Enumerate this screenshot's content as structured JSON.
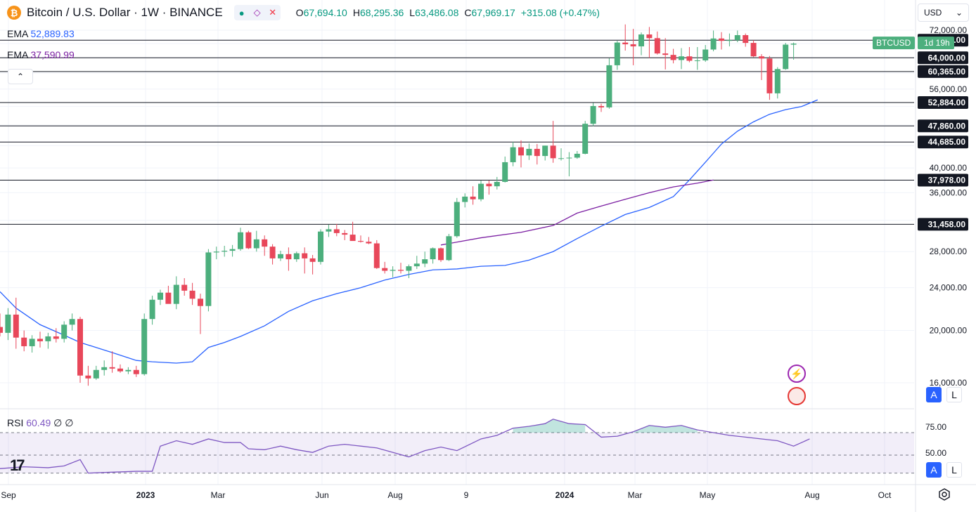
{
  "header": {
    "title": "Bitcoin / U.S. Dollar · 1W · BINANCE",
    "ohlc": [
      {
        "k": "O",
        "v": "67,694.10"
      },
      {
        "k": "H",
        "v": "68,295.36"
      },
      {
        "k": "L",
        "v": "63,486.08"
      },
      {
        "k": "C",
        "v": "67,969.17"
      },
      {
        "k": "",
        "v": "+315.08 (+0.47%)"
      }
    ]
  },
  "indicators": {
    "ema1": {
      "label": "EMA",
      "value": "52,889.83",
      "color": "#2962ff"
    },
    "ema2": {
      "label": "EMA",
      "value": "37,590.99",
      "color": "#7b1fa2"
    },
    "rsi": {
      "label": "RSI",
      "value": "60.49",
      "extra1": "∅",
      "extra2": "∅"
    }
  },
  "currency": "USD",
  "symbol_tag": {
    "symbol": "BTCUSD",
    "countdown": "1d 19h"
  },
  "colors": {
    "up": "#089981",
    "up_body": "#4caf7d",
    "down": "#f23645",
    "down_body": "#e8475a",
    "ema_fast": "#2962ff",
    "ema_slow": "#7b1fa2"
  },
  "chart_data": {
    "type": "candlestick",
    "y_ticks": [
      "72,000.00",
      "56,000.00",
      "40,000.00",
      "36,000.00",
      "28,000.00",
      "24,000.00",
      "20,000.00",
      "16,000.00"
    ],
    "levels": [
      "69,000.00",
      "64,000.00",
      "60,365.00",
      "52,884.00",
      "47,860.00",
      "44,685.00",
      "37,978.00",
      "31,458.00"
    ],
    "x_labels": [
      "Sep",
      "2023",
      "Mar",
      "Jun",
      "Aug",
      "9",
      "2024",
      "Mar",
      "May",
      "Aug",
      "Oct"
    ],
    "ema_fast_points": [
      [
        0,
        23600
      ],
      [
        2,
        22000
      ],
      [
        5,
        20500
      ],
      [
        8,
        19600
      ],
      [
        10,
        19000
      ],
      [
        14,
        18200
      ],
      [
        17,
        17600
      ],
      [
        19,
        17500
      ],
      [
        22,
        17400
      ],
      [
        24,
        17500
      ],
      [
        26,
        18600
      ],
      [
        28,
        19000
      ],
      [
        30,
        19500
      ],
      [
        33,
        20400
      ],
      [
        36,
        21700
      ],
      [
        39,
        22700
      ],
      [
        42,
        23400
      ],
      [
        45,
        24000
      ],
      [
        48,
        24800
      ],
      [
        51,
        25400
      ],
      [
        54,
        25900
      ],
      [
        57,
        26000
      ],
      [
        60,
        26300
      ],
      [
        63,
        26400
      ],
      [
        66,
        27000
      ],
      [
        69,
        28000
      ],
      [
        72,
        29600
      ],
      [
        75,
        31200
      ],
      [
        78,
        32800
      ],
      [
        81,
        33800
      ],
      [
        84,
        35400
      ],
      [
        86,
        38000
      ],
      [
        88,
        41000
      ],
      [
        90,
        44300
      ],
      [
        92,
        46800
      ],
      [
        94,
        48700
      ],
      [
        96,
        50300
      ],
      [
        98,
        51300
      ],
      [
        100,
        52000
      ],
      [
        102,
        53500
      ]
    ],
    "ema_slow_points": [
      [
        55,
        28800
      ],
      [
        60,
        29700
      ],
      [
        65,
        30400
      ],
      [
        69,
        31300
      ],
      [
        72,
        33000
      ],
      [
        75,
        34000
      ],
      [
        78,
        35000
      ],
      [
        81,
        36000
      ],
      [
        84,
        36900
      ],
      [
        87,
        37500
      ],
      [
        89,
        38000
      ]
    ],
    "candles": [
      [
        0,
        20300,
        21500,
        19500,
        19800
      ],
      [
        1,
        19800,
        22000,
        19200,
        21400
      ],
      [
        2,
        21400,
        23000,
        18500,
        19400
      ],
      [
        3,
        19400,
        20000,
        18300,
        18700
      ],
      [
        4,
        18700,
        19600,
        18200,
        19300
      ],
      [
        5,
        19300,
        19900,
        18600,
        19100
      ],
      [
        6,
        19100,
        19800,
        18500,
        19500
      ],
      [
        7,
        19500,
        20200,
        19000,
        19300
      ],
      [
        8,
        19300,
        20800,
        19000,
        20500
      ],
      [
        9,
        20500,
        21500,
        20000,
        21000
      ],
      [
        10,
        21000,
        21200,
        16000,
        16500
      ],
      [
        11,
        16500,
        17200,
        15800,
        16300
      ],
      [
        12,
        16300,
        17200,
        16200,
        16900
      ],
      [
        13,
        16900,
        17600,
        16500,
        17100
      ],
      [
        14,
        17100,
        18300,
        16700,
        17000
      ],
      [
        15,
        17000,
        17300,
        16700,
        16800
      ],
      [
        16,
        16800,
        17100,
        16600,
        16900
      ],
      [
        17,
        16900,
        17200,
        16400,
        16600
      ],
      [
        18,
        16600,
        21500,
        16500,
        21000
      ],
      [
        19,
        21000,
        23200,
        20500,
        22800
      ],
      [
        20,
        22800,
        23800,
        22300,
        23500
      ],
      [
        21,
        23500,
        24200,
        22700,
        22400
      ],
      [
        22,
        22400,
        25200,
        21900,
        24300
      ],
      [
        23,
        24300,
        25000,
        23200,
        23700
      ],
      [
        24,
        23700,
        24500,
        22300,
        22900
      ],
      [
        25,
        22900,
        23400,
        19700,
        22200
      ],
      [
        26,
        22200,
        28300,
        21700,
        27900
      ],
      [
        27,
        27900,
        28600,
        27100,
        28000
      ],
      [
        28,
        28000,
        28700,
        27400,
        28100
      ],
      [
        29,
        28100,
        28800,
        27400,
        28300
      ],
      [
        30,
        28300,
        31000,
        28100,
        30400
      ],
      [
        31,
        30400,
        30600,
        28300,
        28400
      ],
      [
        32,
        28400,
        30600,
        28000,
        29500
      ],
      [
        33,
        29500,
        30000,
        27500,
        28600
      ],
      [
        34,
        28600,
        28900,
        26500,
        27200
      ],
      [
        35,
        27200,
        28100,
        26900,
        27700
      ],
      [
        36,
        27700,
        28500,
        25800,
        27100
      ],
      [
        37,
        27100,
        28000,
        26800,
        27800
      ],
      [
        38,
        27800,
        28500,
        25500,
        27200
      ],
      [
        39,
        27200,
        27600,
        25400,
        26800
      ],
      [
        40,
        26800,
        30800,
        26500,
        30500
      ],
      [
        41,
        30500,
        31400,
        29800,
        30800
      ],
      [
        42,
        30800,
        31500,
        29900,
        30300
      ],
      [
        43,
        30300,
        30700,
        29400,
        30100
      ],
      [
        44,
        30100,
        31800,
        29800,
        29300
      ],
      [
        45,
        29300,
        30000,
        29100,
        29200
      ],
      [
        46,
        29200,
        29800,
        28900,
        29000
      ],
      [
        47,
        29000,
        29400,
        26000,
        26100
      ],
      [
        48,
        26100,
        26800,
        25500,
        25800
      ],
      [
        49,
        25800,
        26300,
        25100,
        25900
      ],
      [
        50,
        25900,
        26700,
        25500,
        25800
      ],
      [
        51,
        25800,
        26500,
        25000,
        26300
      ],
      [
        52,
        26300,
        27500,
        26000,
        26600
      ],
      [
        53,
        26600,
        28000,
        26200,
        27100
      ],
      [
        54,
        27100,
        28500,
        26600,
        28400
      ],
      [
        55,
        28400,
        28500,
        26800,
        27000
      ],
      [
        56,
        27000,
        30200,
        26900,
        29900
      ],
      [
        57,
        29900,
        35200,
        29700,
        34600
      ],
      [
        58,
        34600,
        35900,
        33800,
        35400
      ],
      [
        59,
        35400,
        37000,
        34200,
        35000
      ],
      [
        60,
        35000,
        37900,
        34700,
        37400
      ],
      [
        61,
        37400,
        37900,
        35700,
        37000
      ],
      [
        62,
        37000,
        38500,
        36500,
        37700
      ],
      [
        63,
        37700,
        42000,
        37600,
        41000
      ],
      [
        64,
        41000,
        44700,
        40300,
        43700
      ],
      [
        65,
        43700,
        45000,
        40100,
        42200
      ],
      [
        66,
        42200,
        44400,
        41400,
        43400
      ],
      [
        67,
        43400,
        44300,
        40600,
        42100
      ],
      [
        68,
        42100,
        44000,
        41300,
        44000
      ],
      [
        69,
        44000,
        48900,
        40900,
        41700
      ],
      [
        70,
        41700,
        43500,
        41300,
        41700
      ],
      [
        71,
        41700,
        42800,
        38600,
        41800
      ],
      [
        72,
        41800,
        43000,
        41600,
        42500
      ],
      [
        73,
        42500,
        48900,
        42400,
        48300
      ],
      [
        74,
        48300,
        52800,
        47800,
        52100
      ],
      [
        75,
        52100,
        52600,
        50800,
        51800
      ],
      [
        76,
        51800,
        63900,
        51500,
        62000
      ],
      [
        77,
        62000,
        68800,
        60800,
        68300
      ],
      [
        78,
        68300,
        73800,
        66000,
        67800
      ],
      [
        79,
        67800,
        72400,
        62000,
        67200
      ],
      [
        80,
        67200,
        71300,
        64700,
        70700
      ],
      [
        81,
        70700,
        73000,
        64000,
        69600
      ],
      [
        82,
        69600,
        71600,
        64900,
        65200
      ],
      [
        83,
        65200,
        69600,
        60900,
        64800
      ],
      [
        84,
        64800,
        66500,
        62500,
        63400
      ],
      [
        85,
        63400,
        66700,
        61000,
        64400
      ],
      [
        86,
        64400,
        67000,
        62800,
        63200
      ],
      [
        87,
        63200,
        67000,
        60800,
        63300
      ],
      [
        88,
        63300,
        67600,
        62900,
        66300
      ],
      [
        89,
        66300,
        71900,
        65800,
        69500
      ],
      [
        90,
        69500,
        71400,
        66300,
        68800
      ],
      [
        91,
        68800,
        71000,
        67200,
        69000
      ],
      [
        92,
        69000,
        71900,
        68400,
        70500
      ],
      [
        93,
        70500,
        71000,
        67100,
        68200
      ],
      [
        94,
        68200,
        69000,
        64200,
        64400
      ],
      [
        95,
        64400,
        65000,
        58200,
        63800
      ],
      [
        96,
        63800,
        64500,
        53500,
        55000
      ],
      [
        97,
        55000,
        61500,
        53800,
        61000
      ],
      [
        98,
        61000,
        68200,
        60800,
        67700
      ],
      [
        99,
        67700,
        68300,
        63500,
        68000
      ]
    ],
    "rsi": {
      "value": "60.49",
      "y_ticks": [
        "75.00",
        "50.00"
      ],
      "points": [
        [
          0,
          35
        ],
        [
          3,
          37
        ],
        [
          6,
          36
        ],
        [
          8,
          38
        ],
        [
          10,
          45
        ],
        [
          11,
          30
        ],
        [
          14,
          31
        ],
        [
          17,
          32
        ],
        [
          19,
          32
        ],
        [
          20,
          60
        ],
        [
          22,
          66
        ],
        [
          24,
          62
        ],
        [
          26,
          68
        ],
        [
          28,
          64
        ],
        [
          30,
          64
        ],
        [
          31,
          57
        ],
        [
          33,
          56
        ],
        [
          35,
          60
        ],
        [
          37,
          56
        ],
        [
          39,
          53
        ],
        [
          41,
          60
        ],
        [
          43,
          62
        ],
        [
          45,
          60
        ],
        [
          47,
          58
        ],
        [
          49,
          53
        ],
        [
          51,
          48
        ],
        [
          53,
          55
        ],
        [
          55,
          59
        ],
        [
          57,
          55
        ],
        [
          60,
          68
        ],
        [
          62,
          72
        ],
        [
          64,
          80
        ],
        [
          66,
          82
        ],
        [
          68,
          85
        ],
        [
          69,
          90
        ],
        [
          71,
          85
        ],
        [
          73,
          84
        ],
        [
          75,
          70
        ],
        [
          77,
          71
        ],
        [
          79,
          76
        ],
        [
          81,
          83
        ],
        [
          83,
          81
        ],
        [
          85,
          83
        ],
        [
          87,
          78
        ],
        [
          89,
          75
        ],
        [
          91,
          72
        ],
        [
          93,
          70
        ],
        [
          95,
          68
        ],
        [
          97,
          66
        ],
        [
          99,
          60
        ],
        [
          101,
          68
        ]
      ]
    }
  }
}
